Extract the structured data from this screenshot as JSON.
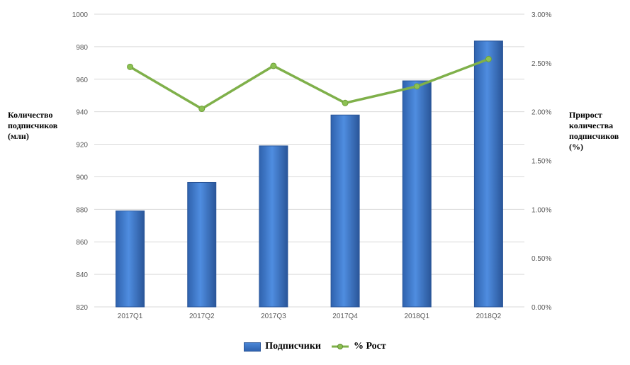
{
  "chart_data": {
    "type": "bar",
    "categories": [
      "2017Q1",
      "2017Q2",
      "2017Q3",
      "2017Q4",
      "2018Q1",
      "2018Q2"
    ],
    "series": [
      {
        "name": "Подписчики",
        "type": "bar",
        "axis": "left",
        "values": [
          879,
          896.5,
          919,
          938,
          959,
          983.5
        ]
      },
      {
        "name": "% Рост",
        "type": "line",
        "axis": "right",
        "values": [
          2.46,
          2.03,
          2.47,
          2.09,
          2.26,
          2.54
        ]
      }
    ],
    "y_left": {
      "label": "Количество\nподписчиков\n(млн)",
      "ylim": [
        820,
        1000
      ],
      "ticks": [
        "820",
        "840",
        "860",
        "880",
        "900",
        "920",
        "940",
        "960",
        "980",
        "1000"
      ]
    },
    "y_right": {
      "label": "Прирост\nколичества\nподписчиков\n(%)",
      "ylim": [
        0,
        3
      ],
      "ticks": [
        "0.00%",
        "0.50%",
        "1.00%",
        "1.50%",
        "2.00%",
        "2.50%",
        "3.00%"
      ]
    },
    "grid": true,
    "legend_position": "bottom",
    "colors": {
      "bar": "#3a73c4",
      "bar_edge": "#2a5699",
      "line": "#7fb04a",
      "marker": "#6e9f3a",
      "grid": "#d9d9d9"
    }
  }
}
